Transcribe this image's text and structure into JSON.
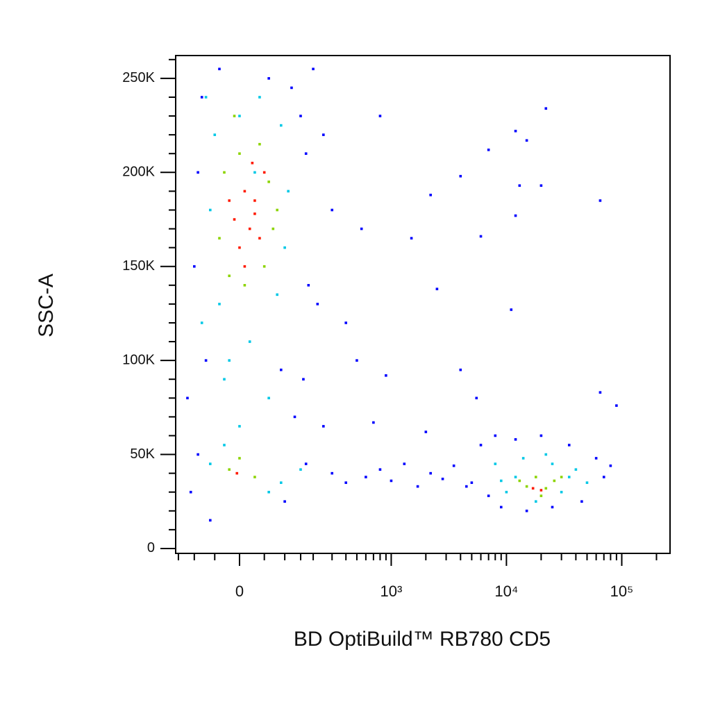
{
  "chart_data": {
    "type": "scatter",
    "xlabel": "BD OptiBuild™ RB780 CD5",
    "ylabel": "SSC-A",
    "xscale": "biexponential",
    "xlim": [
      -160,
      262144
    ],
    "ylim": [
      -2600,
      262144
    ],
    "xticks": [
      0,
      {
        "value": 1000,
        "label": "10³"
      },
      {
        "value": 10000,
        "label": "10⁴"
      },
      {
        "value": 100000,
        "label": "10⁵"
      }
    ],
    "xminorticks": [
      -150,
      -100,
      -50,
      50,
      100,
      150,
      200,
      300,
      400,
      500,
      600,
      700,
      800,
      900,
      2000,
      3000,
      4000,
      5000,
      6000,
      7000,
      8000,
      9000,
      20000,
      30000,
      40000,
      50000,
      60000,
      70000,
      80000,
      90000,
      200000
    ],
    "yticks": [
      0,
      {
        "value": 50000,
        "label": "50K"
      },
      {
        "value": 100000,
        "label": "100K"
      },
      {
        "value": 150000,
        "label": "150K"
      },
      {
        "value": 200000,
        "label": "200K"
      },
      {
        "value": 250000,
        "label": "250K"
      }
    ],
    "yminorticks": [
      10000,
      20000,
      30000,
      40000,
      60000,
      70000,
      80000,
      90000,
      110000,
      120000,
      130000,
      140000,
      160000,
      170000,
      180000,
      190000,
      210000,
      220000,
      230000,
      240000,
      260000
    ],
    "series": [
      {
        "color": "#0000ff",
        "x": [
          -80,
          -40,
          60,
          120,
          150,
          200,
          -90,
          170,
          250,
          300,
          -100,
          180,
          220,
          400,
          -70,
          90,
          160,
          -120,
          130,
          250,
          -90,
          170,
          300,
          400,
          600,
          800,
          1000,
          1300,
          1700,
          2200,
          2800,
          3500,
          4500,
          6000,
          7000,
          8000,
          9000,
          12000,
          15000,
          20000,
          25000,
          35000,
          45000,
          60000,
          70000,
          80000,
          550,
          800,
          1500,
          2200,
          2500,
          4000,
          6000,
          7000,
          12000,
          15000,
          22000,
          13000,
          20000,
          65000,
          11000,
          12000,
          4000,
          5500,
          65000,
          90000,
          700,
          2000,
          -110,
          100,
          -60,
          5000,
          500,
          900
        ],
        "values": [
          240000,
          255000,
          250000,
          245000,
          230000,
          255000,
          200000,
          210000,
          220000,
          180000,
          150000,
          140000,
          130000,
          120000,
          100000,
          95000,
          90000,
          80000,
          70000,
          65000,
          50000,
          45000,
          40000,
          35000,
          38000,
          42000,
          36000,
          45000,
          33000,
          40000,
          37000,
          44000,
          33000,
          55000,
          28000,
          60000,
          22000,
          58000,
          20000,
          60000,
          22000,
          55000,
          25000,
          48000,
          38000,
          44000,
          170000,
          230000,
          165000,
          188000,
          138000,
          198000,
          166000,
          212000,
          222000,
          217000,
          234000,
          193000,
          193000,
          185000,
          127000,
          177000,
          95000,
          80000,
          83000,
          76000,
          67000,
          62000,
          30000,
          25000,
          15000,
          35000,
          100000,
          92000
        ]
      },
      {
        "color": "#00c8e6",
        "x": [
          0,
          40,
          -50,
          90,
          -60,
          110,
          -40,
          80,
          20,
          -30,
          60,
          0,
          -60,
          90,
          60,
          150,
          8000,
          10000,
          14000,
          18000,
          25000,
          30000,
          40000,
          50000,
          22000,
          12000,
          -80,
          100,
          -70,
          30,
          -20,
          35000,
          9000,
          -30
        ],
        "values": [
          230000,
          240000,
          220000,
          225000,
          180000,
          190000,
          130000,
          135000,
          110000,
          90000,
          80000,
          65000,
          45000,
          35000,
          30000,
          42000,
          45000,
          30000,
          48000,
          25000,
          45000,
          30000,
          42000,
          35000,
          50000,
          38000,
          120000,
          160000,
          240000,
          200000,
          100000,
          38000,
          36000,
          55000
        ]
      },
      {
        "color": "#8cd400",
        "x": [
          0,
          40,
          -30,
          60,
          -40,
          70,
          -20,
          50,
          10,
          -20,
          30,
          0,
          15000,
          18000,
          22000,
          26000,
          13000,
          30000,
          20000,
          -10,
          80
        ],
        "values": [
          210000,
          215000,
          200000,
          195000,
          165000,
          170000,
          145000,
          150000,
          140000,
          42000,
          38000,
          48000,
          33000,
          38000,
          32000,
          36000,
          36000,
          38000,
          28000,
          230000,
          180000
        ]
      },
      {
        "color": "#ff1a00",
        "x": [
          10,
          30,
          -10,
          20,
          40,
          0,
          -20,
          50,
          10,
          30,
          17000,
          20000,
          -5,
          25
        ],
        "values": [
          190000,
          185000,
          175000,
          170000,
          165000,
          160000,
          185000,
          200000,
          150000,
          178000,
          32000,
          31000,
          40000,
          205000
        ]
      }
    ]
  }
}
